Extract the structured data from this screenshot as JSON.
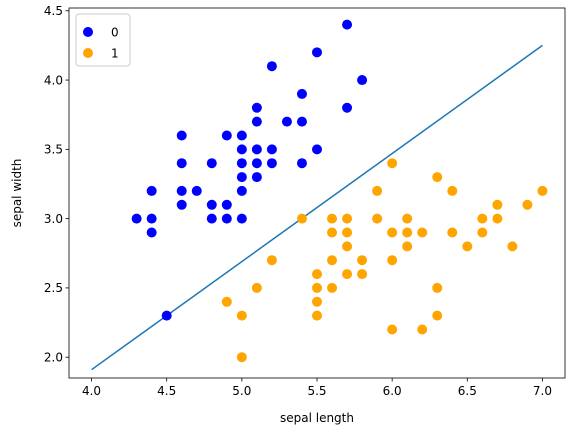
{
  "chart_data": {
    "type": "scatter",
    "xlabel": "sepal length",
    "ylabel": "sepal width",
    "xlim": [
      3.85,
      7.15
    ],
    "ylim": [
      1.85,
      4.52
    ],
    "xticks": [
      "4.0",
      "4.5",
      "5.0",
      "5.5",
      "6.0",
      "6.5",
      "7.0"
    ],
    "yticks": [
      "2.0",
      "2.5",
      "3.0",
      "3.5",
      "4.0",
      "4.5"
    ],
    "legend_position": "top-left",
    "grid": false,
    "series": [
      {
        "name": "0",
        "color": "#0000ff",
        "points": [
          [
            4.3,
            3.0
          ],
          [
            4.4,
            3.2
          ],
          [
            4.4,
            3.0
          ],
          [
            4.4,
            2.9
          ],
          [
            4.5,
            2.3
          ],
          [
            4.6,
            3.6
          ],
          [
            4.6,
            3.4
          ],
          [
            4.6,
            3.2
          ],
          [
            4.6,
            3.1
          ],
          [
            4.7,
            3.2
          ],
          [
            4.8,
            3.4
          ],
          [
            4.8,
            3.1
          ],
          [
            4.8,
            3.0
          ],
          [
            4.9,
            3.6
          ],
          [
            4.9,
            3.1
          ],
          [
            4.9,
            3.0
          ],
          [
            5.0,
            3.6
          ],
          [
            5.0,
            3.5
          ],
          [
            5.0,
            3.4
          ],
          [
            5.0,
            3.3
          ],
          [
            5.0,
            3.2
          ],
          [
            5.0,
            3.0
          ],
          [
            5.1,
            3.8
          ],
          [
            5.1,
            3.7
          ],
          [
            5.1,
            3.5
          ],
          [
            5.1,
            3.4
          ],
          [
            5.1,
            3.3
          ],
          [
            5.2,
            4.1
          ],
          [
            5.2,
            3.5
          ],
          [
            5.2,
            3.4
          ],
          [
            5.3,
            3.7
          ],
          [
            5.4,
            3.9
          ],
          [
            5.4,
            3.7
          ],
          [
            5.4,
            3.4
          ],
          [
            5.5,
            4.2
          ],
          [
            5.5,
            3.5
          ],
          [
            5.7,
            4.4
          ],
          [
            5.7,
            3.8
          ],
          [
            5.8,
            4.0
          ]
        ]
      },
      {
        "name": "1",
        "color": "#ffa500",
        "points": [
          [
            4.9,
            2.4
          ],
          [
            5.0,
            2.3
          ],
          [
            5.0,
            2.0
          ],
          [
            5.1,
            2.5
          ],
          [
            5.2,
            2.7
          ],
          [
            5.4,
            3.0
          ],
          [
            5.5,
            2.6
          ],
          [
            5.5,
            2.5
          ],
          [
            5.5,
            2.4
          ],
          [
            5.5,
            2.3
          ],
          [
            5.6,
            3.0
          ],
          [
            5.6,
            2.9
          ],
          [
            5.6,
            2.7
          ],
          [
            5.6,
            2.5
          ],
          [
            5.7,
            3.0
          ],
          [
            5.7,
            2.9
          ],
          [
            5.7,
            2.8
          ],
          [
            5.7,
            2.6
          ],
          [
            5.8,
            2.7
          ],
          [
            5.8,
            2.6
          ],
          [
            5.9,
            3.2
          ],
          [
            5.9,
            3.0
          ],
          [
            6.0,
            3.4
          ],
          [
            6.0,
            2.9
          ],
          [
            6.0,
            2.7
          ],
          [
            6.0,
            2.2
          ],
          [
            6.1,
            3.0
          ],
          [
            6.1,
            2.9
          ],
          [
            6.1,
            2.8
          ],
          [
            6.2,
            2.9
          ],
          [
            6.2,
            2.2
          ],
          [
            6.3,
            3.3
          ],
          [
            6.3,
            2.5
          ],
          [
            6.3,
            2.3
          ],
          [
            6.4,
            3.2
          ],
          [
            6.4,
            2.9
          ],
          [
            6.5,
            2.8
          ],
          [
            6.6,
            3.0
          ],
          [
            6.6,
            2.9
          ],
          [
            6.7,
            3.1
          ],
          [
            6.7,
            3.0
          ],
          [
            6.8,
            2.8
          ],
          [
            6.9,
            3.1
          ],
          [
            7.0,
            3.2
          ]
        ]
      }
    ],
    "line": {
      "color": "#1f77b4",
      "points": [
        [
          4.0,
          1.91
        ],
        [
          7.0,
          4.25
        ]
      ]
    }
  }
}
